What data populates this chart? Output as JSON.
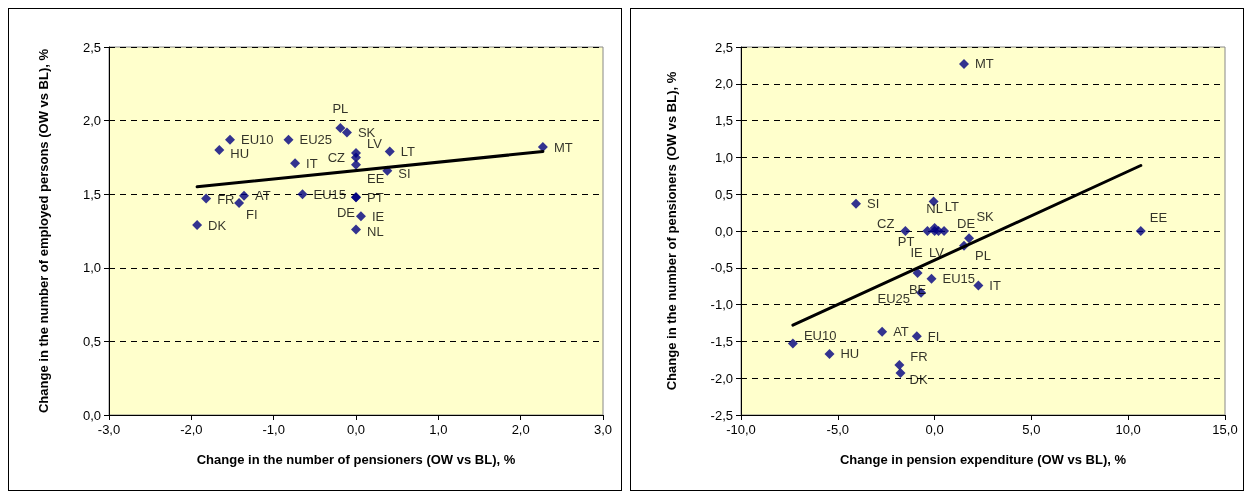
{
  "chart_data": [
    {
      "type": "scatter",
      "xlabel": "Change in the number of pensioners (OW vs BL), %",
      "ylabel": "Change in the number of employed persons (OW vs BL), %",
      "marker": "diamond",
      "grid": "y",
      "xlim": [
        -3,
        3
      ],
      "xticks": [
        {
          "value": -3,
          "label": "-3,0"
        },
        {
          "value": -2,
          "label": "-2,0"
        },
        {
          "value": -1,
          "label": "-1,0"
        },
        {
          "value": 0,
          "label": "0,0"
        },
        {
          "value": 1,
          "label": "1,0"
        },
        {
          "value": 2,
          "label": "2,0"
        },
        {
          "value": 3,
          "label": "3,0"
        }
      ],
      "ylim": [
        0,
        2.5
      ],
      "yticks": [
        {
          "value": 0,
          "label": "0,0"
        },
        {
          "value": 0.5,
          "label": "0,5"
        },
        {
          "value": 1,
          "label": "1,0"
        },
        {
          "value": 1.5,
          "label": "1,5"
        },
        {
          "value": 2,
          "label": "2,0"
        },
        {
          "value": 2.5,
          "label": "2,5"
        }
      ],
      "series": [
        {
          "type": "scatter",
          "color": "#000080",
          "x": [
            -0.19,
            -0.11,
            -1.53,
            -0.82,
            -1.66,
            0.0,
            0.0,
            0.0,
            0.41,
            2.27,
            -0.74,
            0.38,
            -1.36,
            -0.65,
            -1.82,
            -1.42,
            0.0,
            0.0,
            0.06,
            0.0,
            -1.93
          ],
          "values": [
            1.95,
            1.92,
            1.87,
            1.87,
            1.8,
            1.78,
            1.75,
            1.7,
            1.79,
            1.82,
            1.71,
            1.66,
            1.49,
            1.5,
            1.47,
            1.44,
            1.48,
            1.48,
            1.35,
            1.26,
            1.29
          ],
          "value_labels": [
            "PL",
            "SK",
            "EU10",
            "EU25",
            "HU",
            "LV",
            "CZ",
            "EE",
            "LT",
            "MT",
            "IT",
            "SI",
            "AT",
            "EU15",
            "FR",
            "FI",
            "PT",
            "DE",
            "IE",
            "NL",
            "DK"
          ]
        },
        {
          "type": "line",
          "marker": "none",
          "color": "#000000",
          "x": [
            -1.93,
            2.27
          ],
          "values": [
            1.55,
            1.79
          ]
        }
      ]
    },
    {
      "type": "scatter",
      "xlabel": "Change in pension expenditure (OW vs BL), %",
      "ylabel": "Change in the number of pensioners (OW vs BL), %",
      "marker": "diamond",
      "grid": "y",
      "xlim": [
        -10,
        15
      ],
      "xticks": [
        {
          "value": -10,
          "label": "-10,0"
        },
        {
          "value": -5,
          "label": "-5,0"
        },
        {
          "value": 0,
          "label": "0,0"
        },
        {
          "value": 5,
          "label": "5,0"
        },
        {
          "value": 10,
          "label": "10,0"
        },
        {
          "value": 15,
          "label": "15,0"
        }
      ],
      "ylim": [
        -2.5,
        2.5
      ],
      "yticks": [
        {
          "value": -2.5,
          "label": "-2,5"
        },
        {
          "value": -2,
          "label": "-2,0"
        },
        {
          "value": -1.5,
          "label": "-1,5"
        },
        {
          "value": -1,
          "label": "-1,0"
        },
        {
          "value": -0.5,
          "label": "-0,5"
        },
        {
          "value": 0,
          "label": "0,0"
        },
        {
          "value": 0.5,
          "label": "0,5"
        },
        {
          "value": 1,
          "label": "1,0"
        },
        {
          "value": 1.5,
          "label": "1,5"
        },
        {
          "value": 2,
          "label": "2,0"
        },
        {
          "value": 2.5,
          "label": "2,5"
        }
      ],
      "series": [
        {
          "type": "scatter",
          "color": "#000080",
          "x": [
            1.52,
            -4.06,
            -0.05,
            -1.51,
            -0.37,
            0.0,
            0.2,
            0.0,
            0.49,
            1.78,
            1.52,
            10.65,
            -0.88,
            -0.16,
            2.26,
            -0.7,
            -2.71,
            -0.92,
            -7.32,
            -5.43,
            -1.82,
            -1.76
          ],
          "values": [
            2.27,
            0.37,
            0.4,
            0.0,
            0.0,
            0.04,
            0.0,
            0.0,
            0.0,
            -0.1,
            -0.2,
            0.0,
            -0.57,
            -0.65,
            -0.74,
            -0.84,
            -1.37,
            -1.43,
            -1.53,
            -1.67,
            -1.82,
            -1.93
          ],
          "value_labels": [
            "MT",
            "SI",
            "LT",
            "CZ",
            "PT",
            "NL",
            "LV",
            "IE",
            "DE",
            "SK",
            "PL",
            "EE",
            "BE",
            "EU15",
            "IT",
            "EU25",
            "AT",
            "FI",
            "EU10",
            "HU",
            "FR",
            "DK"
          ]
        },
        {
          "type": "line",
          "marker": "none",
          "color": "#000000",
          "x": [
            -7.32,
            10.65
          ],
          "values": [
            -1.28,
            0.89
          ]
        }
      ]
    }
  ]
}
